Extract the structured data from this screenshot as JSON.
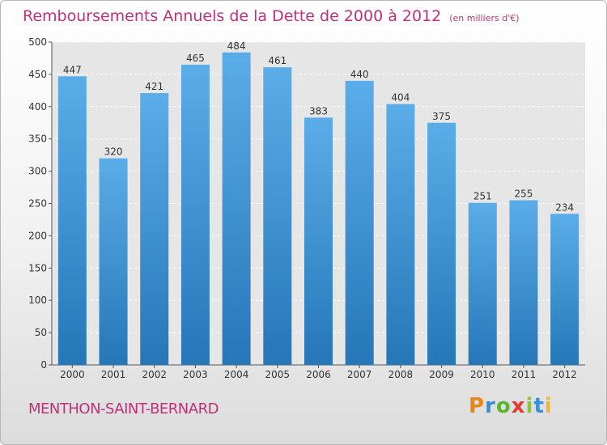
{
  "title": "Remboursements Annuels de la Dette de 2000 à 2012",
  "unit": "(en milliers d'€)",
  "place": "MENTHON-SAINT-BERNARD",
  "brand": "Proxiti",
  "colors": {
    "title": "#c0307a",
    "bar_light": "#5aade8",
    "bar_dark": "#2577b8",
    "brand_letters": [
      "#e8861a",
      "#3b8fd6",
      "#5cb531",
      "#e63a2e",
      "#8cc63f",
      "#3b8fd6",
      "#f2b632"
    ]
  },
  "chart_data": {
    "type": "bar",
    "title": "Remboursements Annuels de la Dette de 2000 à 2012",
    "categories": [
      "2000",
      "2001",
      "2002",
      "2003",
      "2004",
      "2005",
      "2006",
      "2007",
      "2008",
      "2009",
      "2010",
      "2011",
      "2012"
    ],
    "values": [
      447,
      320,
      421,
      465,
      484,
      461,
      383,
      440,
      404,
      375,
      251,
      255,
      234
    ],
    "ylim": [
      0,
      500
    ],
    "yticks": [
      0,
      50,
      100,
      150,
      200,
      250,
      300,
      350,
      400,
      450,
      500
    ],
    "grid": "horizontal dashed",
    "xlabel": "",
    "ylabel": ""
  }
}
